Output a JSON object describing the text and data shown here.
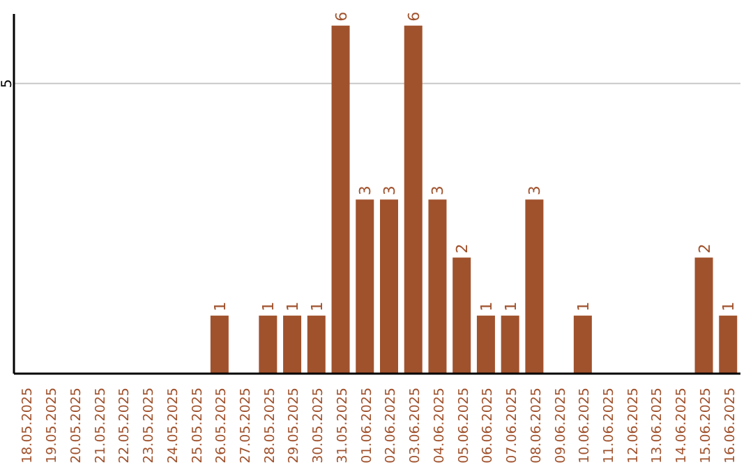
{
  "chart_data": {
    "type": "bar",
    "categories": [
      "18.05.2025",
      "19.05.2025",
      "20.05.2025",
      "21.05.2025",
      "22.05.2025",
      "23.05.2025",
      "24.05.2025",
      "25.05.2025",
      "26.05.2025",
      "27.05.2025",
      "28.05.2025",
      "29.05.2025",
      "30.05.2025",
      "31.05.2025",
      "01.06.2025",
      "02.06.2025",
      "03.06.2025",
      "04.06.2025",
      "05.06.2025",
      "06.06.2025",
      "07.06.2025",
      "08.06.2025",
      "09.06.2025",
      "10.06.2025",
      "11.06.2025",
      "12.06.2025",
      "13.06.2025",
      "14.06.2025",
      "15.06.2025",
      "16.06.2025"
    ],
    "values": [
      0,
      0,
      0,
      0,
      0,
      0,
      0,
      0,
      1,
      0,
      1,
      1,
      1,
      6,
      3,
      3,
      6,
      3,
      2,
      1,
      1,
      3,
      0,
      1,
      0,
      0,
      0,
      0,
      2,
      1
    ],
    "value_labels": [
      null,
      null,
      null,
      null,
      null,
      null,
      null,
      null,
      "1",
      null,
      "1",
      "1",
      "1",
      "6",
      "3",
      "3",
      "6",
      "3",
      "2",
      "1",
      "1",
      "3",
      null,
      "1",
      null,
      null,
      null,
      null,
      "2",
      "1"
    ],
    "color": "#a0522d",
    "ylim": [
      0,
      6.2
    ],
    "yticks": [
      5
    ],
    "grid": "y"
  }
}
